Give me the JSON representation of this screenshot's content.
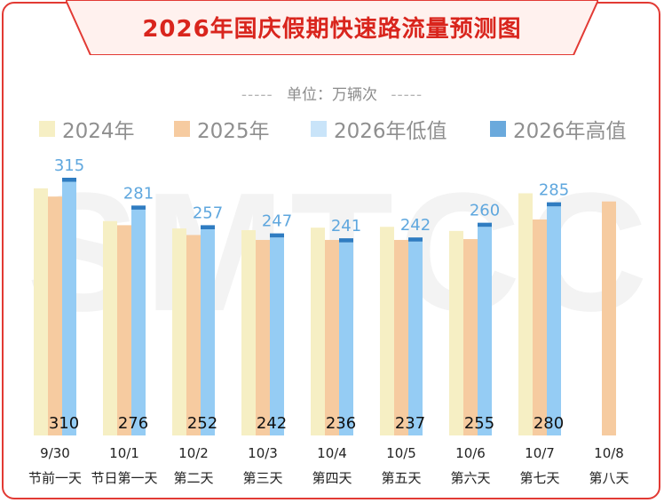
{
  "title": "2026年国庆假期快速路流量预测图",
  "unit_label": "单位：万辆次",
  "unit_dash_left": "-----",
  "unit_dash_right": "-----",
  "watermark": "SMTCC",
  "colors": {
    "frame": "#e23a34",
    "title": "#d9251d",
    "banner_fill": "#fff1ee",
    "y2024": "#f6efc4",
    "y2025": "#f6cba0",
    "low2026": "#95ccf4",
    "high2026": "#2f7cc1",
    "high_label": "#5fa7de",
    "low_label": "#111111"
  },
  "legend": [
    {
      "label": "2024年",
      "color": "#f6efc4"
    },
    {
      "label": "2025年",
      "color": "#f6cba0"
    },
    {
      "label": "2026年低值",
      "color": "#c9e4f9"
    },
    {
      "label": "2026年高值",
      "color": "#6aa9dc"
    }
  ],
  "chart_data": {
    "type": "bar",
    "categories": [
      "9/30",
      "10/1",
      "10/2",
      "10/3",
      "10/4",
      "10/5",
      "10/6",
      "10/7",
      "10/8"
    ],
    "sub_labels": [
      "节前一天",
      "节日第一天",
      "第二天",
      "第三天",
      "第四天",
      "第五天",
      "第六天",
      "第七天",
      "第八天"
    ],
    "series": [
      {
        "name": "2024年",
        "values": [
          302,
          262,
          253,
          251,
          254,
          255,
          250,
          296,
          null
        ]
      },
      {
        "name": "2025年",
        "values": [
          292,
          257,
          245,
          239,
          239,
          239,
          240,
          264,
          286
        ]
      },
      {
        "name": "2026年低值",
        "values": [
          310,
          276,
          252,
          242,
          236,
          237,
          255,
          280,
          null
        ]
      },
      {
        "name": "2026年高值",
        "values": [
          315,
          281,
          257,
          247,
          241,
          242,
          260,
          285,
          null
        ]
      }
    ],
    "low_labels": [
      "310",
      "276",
      "252",
      "242",
      "236",
      "237",
      "255",
      "280",
      ""
    ],
    "high_labels": [
      "315",
      "281",
      "257",
      "247",
      "241",
      "242",
      "260",
      "285",
      ""
    ],
    "ylim": [
      0,
      320
    ]
  }
}
